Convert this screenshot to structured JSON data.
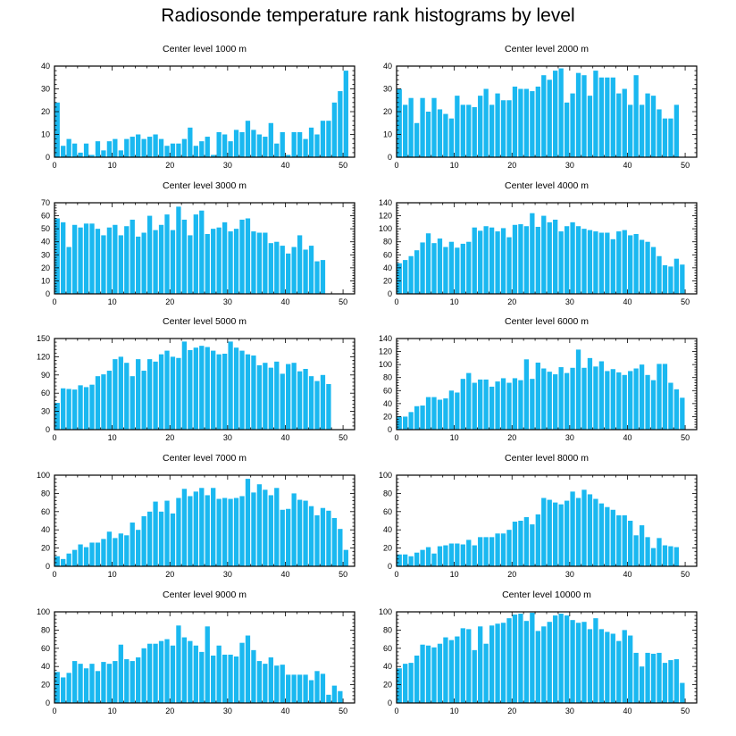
{
  "title": "Radiosonde temperature rank histograms by level",
  "bar_color": "#1ab8f0",
  "chart_data": [
    {
      "type": "bar",
      "title": "Center level 1000 m",
      "xlim": [
        0,
        52
      ],
      "ylim": [
        0,
        40
      ],
      "xticks": [
        0,
        10,
        20,
        30,
        40,
        50
      ],
      "yticks": [
        0,
        10,
        20,
        30,
        40
      ],
      "values": [
        24,
        5,
        8,
        6,
        2,
        6,
        1,
        7,
        3,
        7,
        8,
        3,
        8,
        9,
        10,
        8,
        9,
        10,
        8,
        5,
        6,
        6,
        8,
        13,
        5,
        7,
        9,
        1,
        11,
        10,
        7,
        12,
        11,
        16,
        12,
        10,
        9,
        15,
        6,
        11,
        1,
        11,
        11,
        8,
        13,
        10,
        16,
        16,
        24,
        29,
        38
      ]
    },
    {
      "type": "bar",
      "title": "Center level 2000 m",
      "xlim": [
        0,
        52
      ],
      "ylim": [
        0,
        40
      ],
      "xticks": [
        0,
        10,
        20,
        30,
        40,
        50
      ],
      "yticks": [
        0,
        10,
        20,
        30,
        40
      ],
      "values": [
        30,
        23,
        26,
        15,
        26,
        20,
        26,
        21,
        19,
        17,
        27,
        23,
        23,
        22,
        27,
        30,
        23,
        28,
        25,
        25,
        31,
        30,
        30,
        29,
        31,
        36,
        34,
        38,
        39,
        24,
        28,
        37,
        36,
        27,
        38,
        35,
        35,
        35,
        28,
        30,
        23,
        36,
        23,
        28,
        27,
        21,
        17,
        17,
        23
      ]
    },
    {
      "type": "bar",
      "title": "Center level 3000 m",
      "xlim": [
        0,
        52
      ],
      "ylim": [
        0,
        70
      ],
      "xticks": [
        0,
        10,
        20,
        30,
        40,
        50
      ],
      "yticks": [
        0,
        10,
        20,
        30,
        40,
        50,
        60,
        70
      ],
      "values": [
        58,
        55,
        36,
        53,
        51,
        54,
        54,
        50,
        45,
        51,
        53,
        45,
        52,
        57,
        44,
        47,
        60,
        49,
        53,
        61,
        49,
        67,
        57,
        45,
        61,
        64,
        46,
        50,
        51,
        55,
        48,
        50,
        57,
        58,
        48,
        47,
        47,
        39,
        40,
        37,
        31,
        36,
        45,
        34,
        37,
        25,
        26
      ]
    },
    {
      "type": "bar",
      "title": "Center level 4000 m",
      "xlim": [
        0,
        52
      ],
      "ylim": [
        0,
        140
      ],
      "xticks": [
        0,
        10,
        20,
        30,
        40,
        50
      ],
      "yticks": [
        0,
        20,
        40,
        60,
        80,
        100,
        120,
        140
      ],
      "values": [
        47,
        52,
        58,
        67,
        79,
        93,
        78,
        85,
        72,
        80,
        71,
        77,
        80,
        102,
        97,
        104,
        102,
        96,
        101,
        87,
        106,
        107,
        104,
        124,
        103,
        120,
        110,
        114,
        96,
        104,
        110,
        104,
        100,
        98,
        96,
        94,
        94,
        84,
        96,
        98,
        90,
        92,
        83,
        80,
        72,
        58,
        44,
        42,
        54,
        45
      ]
    },
    {
      "type": "bar",
      "title": "Center level 5000 m",
      "xlim": [
        0,
        52
      ],
      "ylim": [
        0,
        150
      ],
      "xticks": [
        0,
        10,
        20,
        30,
        40,
        50
      ],
      "yticks": [
        0,
        30,
        60,
        90,
        120,
        150
      ],
      "values": [
        44,
        68,
        67,
        66,
        73,
        70,
        74,
        88,
        91,
        97,
        116,
        120,
        110,
        88,
        116,
        97,
        116,
        112,
        124,
        130,
        120,
        118,
        145,
        131,
        135,
        138,
        136,
        130,
        124,
        125,
        145,
        135,
        130,
        124,
        122,
        106,
        110,
        102,
        112,
        92,
        108,
        110,
        96,
        100,
        88,
        80,
        90,
        75
      ]
    },
    {
      "type": "bar",
      "title": "Center level 6000 m",
      "xlim": [
        0,
        52
      ],
      "ylim": [
        0,
        140
      ],
      "xticks": [
        0,
        10,
        20,
        30,
        40,
        50
      ],
      "yticks": [
        0,
        20,
        40,
        60,
        80,
        100,
        120,
        140
      ],
      "values": [
        20,
        20,
        27,
        36,
        37,
        50,
        50,
        46,
        48,
        60,
        57,
        78,
        87,
        72,
        77,
        77,
        66,
        74,
        79,
        72,
        79,
        76,
        108,
        78,
        103,
        94,
        89,
        85,
        96,
        87,
        95,
        123,
        95,
        110,
        97,
        105,
        90,
        93,
        88,
        84,
        90,
        94,
        100,
        84,
        76,
        101,
        101,
        72,
        62,
        49
      ]
    },
    {
      "type": "bar",
      "title": "Center level 7000 m",
      "xlim": [
        0,
        52
      ],
      "ylim": [
        0,
        100
      ],
      "xticks": [
        0,
        10,
        20,
        30,
        40,
        50
      ],
      "yticks": [
        0,
        20,
        40,
        60,
        80,
        100
      ],
      "values": [
        11,
        8,
        14,
        18,
        24,
        21,
        26,
        26,
        30,
        38,
        31,
        36,
        34,
        48,
        40,
        55,
        60,
        71,
        60,
        72,
        58,
        75,
        85,
        77,
        82,
        86,
        78,
        86,
        74,
        75,
        74,
        75,
        77,
        96,
        81,
        90,
        84,
        78,
        86,
        62,
        63,
        80,
        73,
        72,
        66,
        56,
        64,
        61,
        53,
        41,
        18
      ]
    },
    {
      "type": "bar",
      "title": "Center level 8000 m",
      "xlim": [
        0,
        52
      ],
      "ylim": [
        0,
        100
      ],
      "xticks": [
        0,
        10,
        20,
        30,
        40,
        50
      ],
      "yticks": [
        0,
        20,
        40,
        60,
        80,
        100
      ],
      "values": [
        13,
        13,
        11,
        15,
        18,
        21,
        14,
        22,
        23,
        25,
        25,
        24,
        29,
        23,
        32,
        32,
        32,
        36,
        36,
        40,
        49,
        50,
        54,
        46,
        57,
        75,
        73,
        70,
        68,
        72,
        82,
        75,
        84,
        79,
        74,
        69,
        65,
        62,
        56,
        56,
        50,
        34,
        45,
        32,
        20,
        31,
        23,
        22,
        21
      ]
    },
    {
      "type": "bar",
      "title": "Center level 9000 m",
      "xlim": [
        0,
        52
      ],
      "ylim": [
        0,
        100
      ],
      "xticks": [
        0,
        10,
        20,
        30,
        40,
        50
      ],
      "yticks": [
        0,
        20,
        40,
        60,
        80,
        100
      ],
      "values": [
        34,
        28,
        33,
        46,
        43,
        38,
        43,
        35,
        45,
        43,
        46,
        64,
        48,
        46,
        50,
        60,
        65,
        65,
        68,
        70,
        63,
        85,
        72,
        68,
        63,
        56,
        84,
        52,
        63,
        53,
        53,
        51,
        66,
        74,
        58,
        46,
        43,
        50,
        41,
        42,
        31,
        31,
        31,
        31,
        25,
        35,
        32,
        9,
        19,
        13
      ]
    },
    {
      "type": "bar",
      "title": "Center level 10000 m",
      "xlim": [
        0,
        52
      ],
      "ylim": [
        0,
        100
      ],
      "xticks": [
        0,
        10,
        20,
        30,
        40,
        50
      ],
      "yticks": [
        0,
        20,
        40,
        60,
        80,
        100
      ],
      "values": [
        38,
        43,
        44,
        52,
        64,
        63,
        61,
        65,
        72,
        69,
        73,
        82,
        81,
        58,
        84,
        65,
        85,
        87,
        88,
        93,
        97,
        98,
        90,
        99,
        79,
        84,
        89,
        96,
        98,
        96,
        91,
        88,
        89,
        81,
        93,
        81,
        78,
        76,
        68,
        80,
        74,
        55,
        40,
        55,
        54,
        55,
        44,
        47,
        48,
        22
      ]
    }
  ]
}
